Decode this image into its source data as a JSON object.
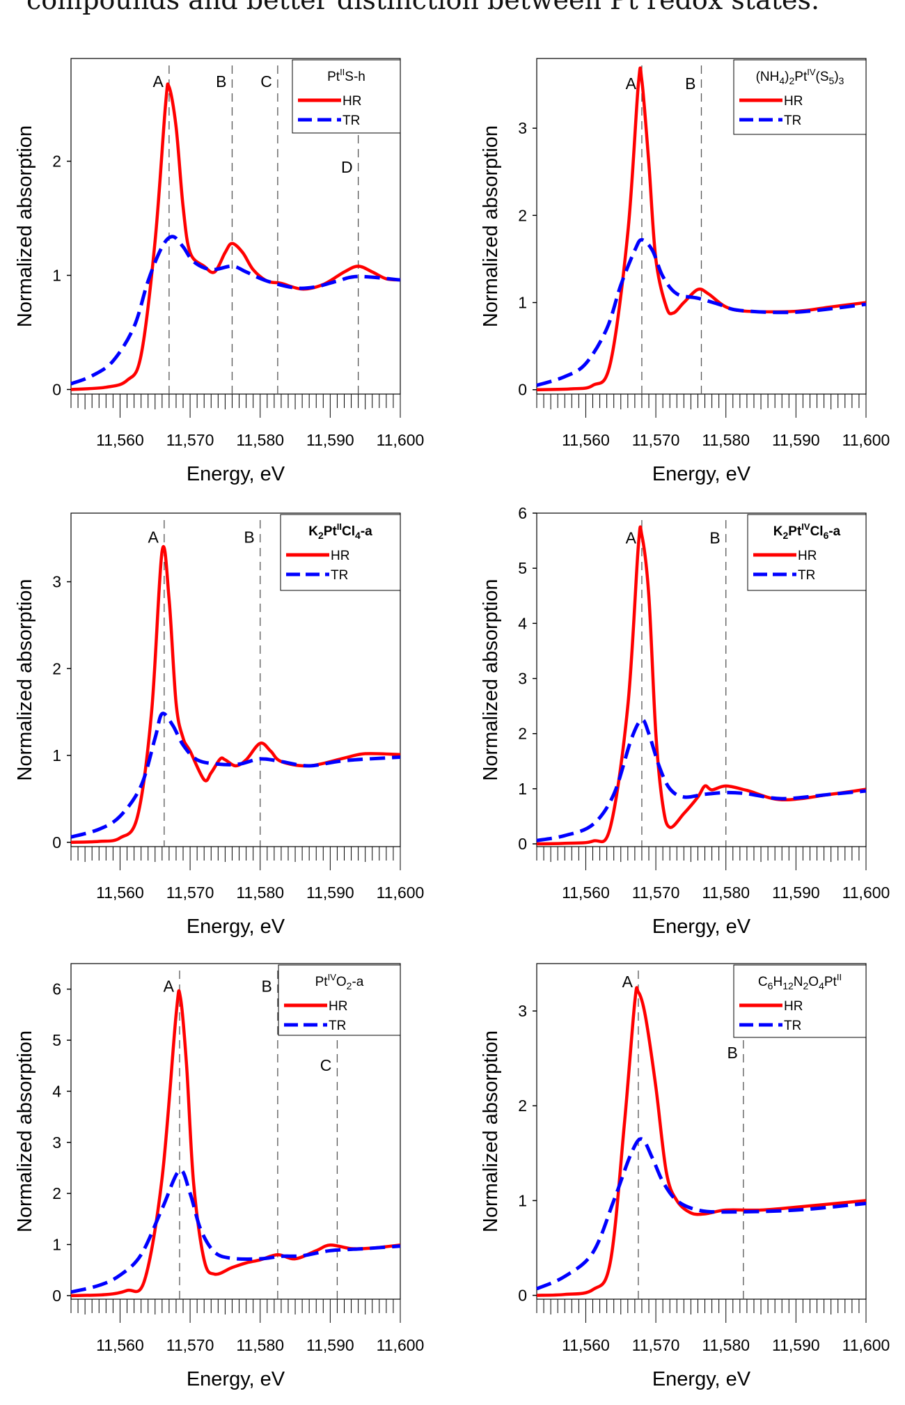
{
  "caption": "compounds and better distinction between Pt redox states.",
  "colors": {
    "HR": "#ff0000",
    "TR": "#0000ff",
    "refline": "#555555"
  },
  "chart_data": [
    {
      "type": "line",
      "xlabel": "Energy, eV",
      "ylabel": "Normalized absorption",
      "xlim": [
        11553,
        11600
      ],
      "ylim": [
        -0.04,
        2.9
      ],
      "xticks": [
        11560,
        11570,
        11580,
        11590,
        11600
      ],
      "xtick_labels": [
        "11,560",
        "11,570",
        "11,580",
        "11,590",
        "11,600"
      ],
      "yticks": [
        0,
        1,
        2
      ],
      "ytick_labels": [
        "0",
        "1",
        "2"
      ],
      "legend_title": [
        {
          "t": "Pt"
        },
        {
          "t": "II",
          "sup": true
        },
        {
          "t": "S-h"
        }
      ],
      "legend_position": "top-right",
      "reference_lines": [
        {
          "label": "A",
          "x": 11567,
          "label_y": 2.65
        },
        {
          "label": "B",
          "x": 11576,
          "label_y": 2.65
        },
        {
          "label": "C",
          "x": 11582.5,
          "label_y": 2.65
        },
        {
          "label": "D",
          "x": 11594,
          "label_y": 1.9
        }
      ],
      "series": [
        {
          "name": "HR",
          "style": "solid",
          "x": [
            11553,
            11558,
            11561,
            11563,
            11565,
            11566.5,
            11567,
            11568,
            11569,
            11570,
            11572,
            11573.5,
            11575,
            11576,
            11577.5,
            11579,
            11581,
            11583,
            11586,
            11589,
            11592,
            11594,
            11596,
            11598,
            11600
          ],
          "y": [
            0,
            0.02,
            0.08,
            0.3,
            1.3,
            2.5,
            2.65,
            2.3,
            1.6,
            1.2,
            1.08,
            1.03,
            1.2,
            1.28,
            1.2,
            1.05,
            0.95,
            0.93,
            0.88,
            0.92,
            1.03,
            1.08,
            1.03,
            0.97,
            0.96
          ]
        },
        {
          "name": "TR",
          "style": "dashed",
          "x": [
            11553,
            11556,
            11559,
            11562,
            11564,
            11566,
            11567.5,
            11569,
            11570.5,
            11573,
            11576,
            11578,
            11581,
            11585,
            11588,
            11591,
            11594,
            11600
          ],
          "y": [
            0.05,
            0.12,
            0.25,
            0.55,
            0.95,
            1.25,
            1.34,
            1.25,
            1.12,
            1.05,
            1.08,
            1.03,
            0.95,
            0.89,
            0.9,
            0.95,
            0.99,
            0.96
          ]
        }
      ]
    },
    {
      "type": "line",
      "xlabel": "Energy, eV",
      "ylabel": "Normalized absorption",
      "xlim": [
        11553,
        11600
      ],
      "ylim": [
        -0.05,
        3.8
      ],
      "xticks": [
        11560,
        11570,
        11580,
        11590,
        11600
      ],
      "xtick_labels": [
        "11,560",
        "11,570",
        "11,580",
        "11,590",
        "11,600"
      ],
      "yticks": [
        0,
        1,
        2,
        3
      ],
      "ytick_labels": [
        "0",
        "1",
        "2",
        "3"
      ],
      "legend_title": [
        {
          "t": "(NH"
        },
        {
          "t": "4",
          "sub": true
        },
        {
          "t": ")"
        },
        {
          "t": "2",
          "sub": true
        },
        {
          "t": "Pt"
        },
        {
          "t": "IV",
          "sup": true
        },
        {
          "t": "(S"
        },
        {
          "t": "5",
          "sub": true
        },
        {
          "t": ")"
        },
        {
          "t": "3",
          "sub": true
        }
      ],
      "legend_position": "top-right",
      "reference_lines": [
        {
          "label": "A",
          "x": 11568,
          "label_y": 3.45
        },
        {
          "label": "B",
          "x": 11576.5,
          "label_y": 3.45
        }
      ],
      "series": [
        {
          "name": "HR",
          "style": "solid",
          "x": [
            11553,
            11558,
            11561,
            11563.5,
            11566,
            11567.5,
            11568,
            11569,
            11570,
            11571.5,
            11572.5,
            11574,
            11576,
            11577.5,
            11580,
            11583,
            11590,
            11595,
            11600
          ],
          "y": [
            0,
            0.01,
            0.05,
            0.3,
            1.8,
            3.5,
            3.55,
            2.6,
            1.5,
            0.95,
            0.88,
            1.0,
            1.15,
            1.1,
            0.95,
            0.9,
            0.9,
            0.95,
            1.0
          ]
        },
        {
          "name": "TR",
          "style": "dashed",
          "x": [
            11553,
            11557,
            11560,
            11563,
            11565,
            11567,
            11568,
            11569.5,
            11571,
            11573,
            11576,
            11579,
            11582,
            11590,
            11600
          ],
          "y": [
            0.05,
            0.15,
            0.3,
            0.7,
            1.2,
            1.6,
            1.72,
            1.6,
            1.3,
            1.1,
            1.05,
            0.98,
            0.91,
            0.89,
            0.98
          ]
        }
      ]
    },
    {
      "type": "line",
      "xlabel": "Energy, eV",
      "ylabel": "Normalized absorption",
      "xlim": [
        11553,
        11600
      ],
      "ylim": [
        -0.05,
        3.79
      ],
      "xticks": [
        11560,
        11570,
        11580,
        11590,
        11600
      ],
      "xtick_labels": [
        "11,560",
        "11,570",
        "11,580",
        "11,590",
        "11,600"
      ],
      "yticks": [
        0,
        1,
        2,
        3
      ],
      "ytick_labels": [
        "0",
        "1",
        "2",
        "3"
      ],
      "legend_title": [
        {
          "t": "K",
          "bold": true
        },
        {
          "t": "2",
          "sub": true,
          "bold": true
        },
        {
          "t": "Pt",
          "bold": true
        },
        {
          "t": "II",
          "sup": true,
          "bold": true
        },
        {
          "t": "Cl",
          "bold": true
        },
        {
          "t": "4",
          "sub": true,
          "bold": true
        },
        {
          "t": "-a",
          "bold": true
        }
      ],
      "legend_position": "top-right",
      "reference_lines": [
        {
          "label": "A",
          "x": 11566.3,
          "label_y": 3.45
        },
        {
          "label": "B",
          "x": 11580,
          "label_y": 3.45
        }
      ],
      "series": [
        {
          "name": "HR",
          "style": "solid",
          "x": [
            11553,
            11557,
            11560,
            11562.5,
            11564.5,
            11566,
            11567,
            11568,
            11569,
            11570,
            11572,
            11573,
            11574.3,
            11575,
            11576.5,
            11578,
            11580,
            11581.5,
            11583,
            11587,
            11592,
            11595,
            11600
          ],
          "y": [
            0,
            0.01,
            0.05,
            0.3,
            1.5,
            3.35,
            2.8,
            1.6,
            1.2,
            1.05,
            0.72,
            0.8,
            0.96,
            0.95,
            0.88,
            0.95,
            1.14,
            1.05,
            0.93,
            0.88,
            0.97,
            1.02,
            1.01
          ]
        },
        {
          "name": "TR",
          "style": "dashed",
          "x": [
            11553,
            11557,
            11560,
            11563,
            11565,
            11566,
            11567.5,
            11569,
            11571,
            11574,
            11577,
            11580,
            11583,
            11587,
            11592,
            11600
          ],
          "y": [
            0.06,
            0.15,
            0.3,
            0.65,
            1.2,
            1.48,
            1.35,
            1.12,
            0.95,
            0.9,
            0.9,
            0.96,
            0.93,
            0.88,
            0.94,
            0.98
          ]
        }
      ]
    },
    {
      "type": "line",
      "xlabel": "Energy, eV",
      "ylabel": "Normalized absorption",
      "xlim": [
        11553,
        11600
      ],
      "ylim": [
        -0.05,
        6
      ],
      "xticks": [
        11560,
        11570,
        11580,
        11590,
        11600
      ],
      "xtick_labels": [
        "11,560",
        "11,570",
        "11,580",
        "11,590",
        "11,600"
      ],
      "yticks": [
        0,
        1,
        2,
        3,
        4,
        5,
        6
      ],
      "ytick_labels": [
        "0",
        "1",
        "2",
        "3",
        "4",
        "5",
        "6"
      ],
      "legend_title": [
        {
          "t": "K",
          "bold": true
        },
        {
          "t": "2",
          "sub": true,
          "bold": true
        },
        {
          "t": "Pt",
          "bold": true
        },
        {
          "t": "IV",
          "sup": true,
          "bold": true
        },
        {
          "t": "Cl",
          "bold": true
        },
        {
          "t": "6",
          "sub": true,
          "bold": true
        },
        {
          "t": "-a",
          "bold": true
        }
      ],
      "legend_position": "top-right",
      "reference_lines": [
        {
          "label": "A",
          "x": 11568,
          "label_y": 5.45
        },
        {
          "label": "B",
          "x": 11580,
          "label_y": 5.45
        }
      ],
      "series": [
        {
          "name": "HR",
          "style": "solid",
          "x": [
            11553,
            11557,
            11561,
            11563.5,
            11566,
            11567.5,
            11568,
            11569,
            11570,
            11571,
            11572,
            11574,
            11576,
            11577,
            11578,
            11580,
            11583,
            11588,
            11595,
            11600
          ],
          "y": [
            0,
            0.01,
            0.05,
            0.3,
            2.5,
            5.4,
            5.6,
            4.5,
            2.0,
            0.7,
            0.3,
            0.55,
            0.85,
            1.05,
            0.98,
            1.05,
            0.97,
            0.8,
            0.9,
            0.99
          ]
        },
        {
          "name": "TR",
          "style": "dashed",
          "x": [
            11553,
            11557,
            11561,
            11564,
            11566.5,
            11568,
            11569,
            11570.5,
            11572,
            11574,
            11577,
            11580,
            11583,
            11588,
            11595,
            11600
          ],
          "y": [
            0.06,
            0.15,
            0.35,
            0.9,
            1.9,
            2.25,
            2.0,
            1.4,
            1.0,
            0.85,
            0.9,
            0.93,
            0.91,
            0.82,
            0.9,
            0.96
          ]
        }
      ]
    },
    {
      "type": "line",
      "xlabel": "Energy, eV",
      "ylabel": "Normalized absorption",
      "xlim": [
        11553,
        11600
      ],
      "ylim": [
        -0.07,
        6.5
      ],
      "xticks": [
        11560,
        11570,
        11580,
        11590,
        11600
      ],
      "xtick_labels": [
        "11,560",
        "11,570",
        "11,580",
        "11,590",
        "11,600"
      ],
      "yticks": [
        0,
        1,
        2,
        3,
        4,
        5,
        6
      ],
      "ytick_labels": [
        "0",
        "1",
        "2",
        "3",
        "4",
        "5",
        "6"
      ],
      "legend_title": [
        {
          "t": "Pt"
        },
        {
          "t": "IV",
          "sup": true
        },
        {
          "t": "O"
        },
        {
          "t": "2",
          "sub": true
        },
        {
          "t": "-a"
        }
      ],
      "legend_position": "top-right",
      "reference_lines": [
        {
          "label": "A",
          "x": 11568.5,
          "label_y": 5.95
        },
        {
          "label": "B",
          "x": 11582.5,
          "label_y": 5.95
        },
        {
          "label": "C",
          "x": 11591,
          "label_y": 4.4
        }
      ],
      "series": [
        {
          "name": "HR",
          "style": "solid",
          "x": [
            11553,
            11558,
            11561,
            11563.5,
            11566,
            11568,
            11568.6,
            11569.5,
            11570.5,
            11572,
            11573.5,
            11576,
            11578,
            11580,
            11582.5,
            11585,
            11588,
            11590,
            11593,
            11596,
            11600
          ],
          "y": [
            0,
            0.02,
            0.1,
            0.3,
            2.3,
            5.5,
            5.85,
            4.5,
            2.2,
            0.7,
            0.42,
            0.55,
            0.64,
            0.7,
            0.8,
            0.72,
            0.88,
            0.99,
            0.92,
            0.93,
            0.99
          ]
        },
        {
          "name": "TR",
          "style": "dashed",
          "x": [
            11553,
            11557,
            11560,
            11563,
            11566,
            11568.5,
            11570,
            11571.5,
            11573.5,
            11576,
            11580,
            11583,
            11586,
            11590,
            11595,
            11600
          ],
          "y": [
            0.07,
            0.2,
            0.4,
            0.8,
            1.7,
            2.45,
            2.0,
            1.3,
            0.85,
            0.73,
            0.72,
            0.77,
            0.78,
            0.88,
            0.92,
            0.97
          ]
        }
      ]
    },
    {
      "type": "line",
      "xlabel": "Energy, eV",
      "ylabel": "Normalized absorption",
      "xlim": [
        11553,
        11600
      ],
      "ylim": [
        -0.04,
        3.5
      ],
      "xticks": [
        11560,
        11570,
        11580,
        11590,
        11600
      ],
      "xtick_labels": [
        "11,560",
        "11,570",
        "11,580",
        "11,590",
        "11,600"
      ],
      "yticks": [
        0,
        1,
        2,
        3
      ],
      "ytick_labels": [
        "0",
        "1",
        "2",
        "3"
      ],
      "legend_title": [
        {
          "t": "C"
        },
        {
          "t": "6",
          "sub": true
        },
        {
          "t": "H"
        },
        {
          "t": "12",
          "sub": true
        },
        {
          "t": "N"
        },
        {
          "t": "2",
          "sub": true
        },
        {
          "t": "O"
        },
        {
          "t": "4",
          "sub": true
        },
        {
          "t": "Pt"
        },
        {
          "t": "II",
          "sup": true
        }
      ],
      "legend_position": "top-right",
      "reference_lines": [
        {
          "label": "A",
          "x": 11567.5,
          "label_y": 3.25
        },
        {
          "label": "B",
          "x": 11582.5,
          "label_y": 2.5
        }
      ],
      "series": [
        {
          "name": "HR",
          "style": "solid",
          "x": [
            11553,
            11557,
            11561,
            11563.5,
            11565.5,
            11567,
            11567.5,
            11568.5,
            11570,
            11571.5,
            11573,
            11575,
            11577,
            11580,
            11585,
            11590,
            11600
          ],
          "y": [
            0,
            0.01,
            0.06,
            0.35,
            1.8,
            3.1,
            3.2,
            2.95,
            2.2,
            1.3,
            1.0,
            0.87,
            0.86,
            0.9,
            0.9,
            0.93,
            1.0
          ]
        },
        {
          "name": "TR",
          "style": "dashed",
          "x": [
            11553,
            11557,
            11561,
            11564,
            11566.5,
            11568,
            11569.5,
            11571,
            11573,
            11576,
            11580,
            11590,
            11600
          ],
          "y": [
            0.07,
            0.2,
            0.45,
            1.0,
            1.5,
            1.65,
            1.45,
            1.2,
            1.0,
            0.9,
            0.88,
            0.9,
            0.97
          ]
        }
      ]
    }
  ]
}
